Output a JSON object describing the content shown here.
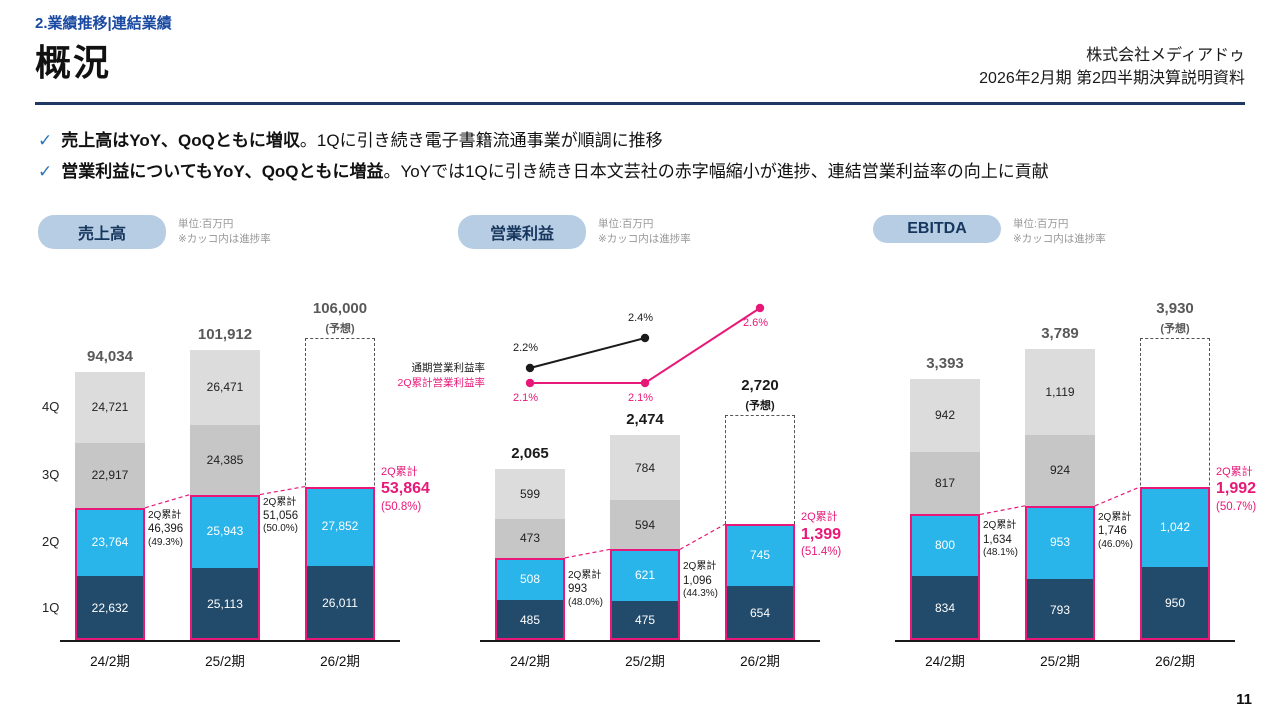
{
  "page": {
    "section_label": "2.業績推移|連結業績",
    "title": "概況",
    "company": "株式会社メディアドゥ",
    "doc_title": "2026年2月期 第2四半期決算説明資料",
    "page_number": "11"
  },
  "bullets": [
    {
      "check": "✓",
      "bold": "売上高はYoY、QoQともに増収",
      "rest": "。1Qに引き続き電子書籍流通事業が順調に推移"
    },
    {
      "check": "✓",
      "bold": "営業利益についてもYoY、QoQともに増益",
      "rest": "。YoYでは1Qに引き続き日本文芸社の赤字幅縮小が進捗、連結営業利益率の向上に貢献"
    }
  ],
  "colors": {
    "accent_blue": "#1b4aa2",
    "navy": "#214a6b",
    "cyan": "#29b4ea",
    "gray_3q": "#c6c6c6",
    "gray_4q": "#dcdcdc",
    "pink": "#e81879",
    "pill_bg": "#b7cde4"
  },
  "chart_data": [
    {
      "type": "bar",
      "subtype": "stacked",
      "title": "売上高",
      "unit": "単位:百万円",
      "note": "※カッコ内は進捗率",
      "categories": [
        "24/2期",
        "25/2期",
        "26/2期"
      ],
      "quarter_axis": true,
      "series": [
        {
          "name": "1Q",
          "values": [
            22632,
            25113,
            26011
          ]
        },
        {
          "name": "2Q",
          "values": [
            23764,
            25943,
            27852
          ]
        },
        {
          "name": "3Q",
          "values": [
            22917,
            24385,
            null
          ]
        },
        {
          "name": "4Q",
          "values": [
            24721,
            26471,
            null
          ]
        }
      ],
      "totals": [
        "94,034",
        "101,912",
        "106,000"
      ],
      "forecast_index": 2,
      "forecast_label": "(予想)",
      "forecast_total": 106000,
      "cumulative": [
        {
          "label": "2Q累計",
          "value": "46,396",
          "pct": "(49.3%)"
        },
        {
          "label": "2Q累計",
          "value": "51,056",
          "pct": "(50.0%)"
        },
        {
          "label": "2Q累計",
          "value": "53,864",
          "pct": "(50.8%)",
          "highlight": true
        }
      ]
    },
    {
      "type": "bar",
      "subtype": "stacked+line",
      "title": "営業利益",
      "unit": "単位:百万円",
      "note": "※カッコ内は進捗率",
      "categories": [
        "24/2期",
        "25/2期",
        "26/2期"
      ],
      "quarter_axis": false,
      "series": [
        {
          "name": "1Q",
          "values": [
            485,
            475,
            654
          ]
        },
        {
          "name": "2Q",
          "values": [
            508,
            621,
            745
          ]
        },
        {
          "name": "3Q",
          "values": [
            473,
            594,
            null
          ]
        },
        {
          "name": "4Q",
          "values": [
            599,
            784,
            null
          ]
        }
      ],
      "totals": [
        "2,065",
        "2,474",
        "2,720"
      ],
      "forecast_index": 2,
      "forecast_label": "(予想)",
      "forecast_total": 2720,
      "cumulative": [
        {
          "label": "2Q累計",
          "value": "993",
          "pct": "(48.0%)"
        },
        {
          "label": "2Q累計",
          "value": "1,096",
          "pct": "(44.3%)"
        },
        {
          "label": "2Q累計",
          "value": "1,399",
          "pct": "(51.4%)",
          "highlight": true
        }
      ],
      "lines": [
        {
          "name": "通期営業利益率",
          "color": "black",
          "points": [
            {
              "cat": 0,
              "pct": 2.2,
              "label": "2.2%",
              "label_pos": "above"
            },
            {
              "cat": 1,
              "pct": 2.4,
              "label": "2.4%",
              "label_pos": "above"
            }
          ]
        },
        {
          "name": "2Q累計営業利益率",
          "color": "pink",
          "points": [
            {
              "cat": 0,
              "pct": 2.1,
              "label": "2.1%",
              "label_pos": "below"
            },
            {
              "cat": 1,
              "pct": 2.1,
              "label": "2.1%",
              "label_pos": "below"
            },
            {
              "cat": 2,
              "pct": 2.6,
              "label": "2.6%",
              "label_pos": "below"
            }
          ]
        }
      ]
    },
    {
      "type": "bar",
      "subtype": "stacked",
      "title": "EBITDA",
      "unit": "単位:百万円",
      "note": "※カッコ内は進捗率",
      "categories": [
        "24/2期",
        "25/2期",
        "26/2期"
      ],
      "quarter_axis": false,
      "series": [
        {
          "name": "1Q",
          "values": [
            834,
            793,
            950
          ]
        },
        {
          "name": "2Q",
          "values": [
            800,
            953,
            1042
          ]
        },
        {
          "name": "3Q",
          "values": [
            817,
            924,
            null
          ]
        },
        {
          "name": "4Q",
          "values": [
            942,
            1119,
            null
          ]
        }
      ],
      "totals": [
        "3,393",
        "3,789",
        "3,930"
      ],
      "forecast_index": 2,
      "forecast_label": "(予想)",
      "forecast_total": 3930,
      "cumulative": [
        {
          "label": "2Q累計",
          "value": "1,634",
          "pct": "(48.1%)"
        },
        {
          "label": "2Q累計",
          "value": "1,746",
          "pct": "(46.0%)"
        },
        {
          "label": "2Q累計",
          "value": "1,992",
          "pct": "(50.7%)",
          "highlight": true
        }
      ]
    }
  ]
}
